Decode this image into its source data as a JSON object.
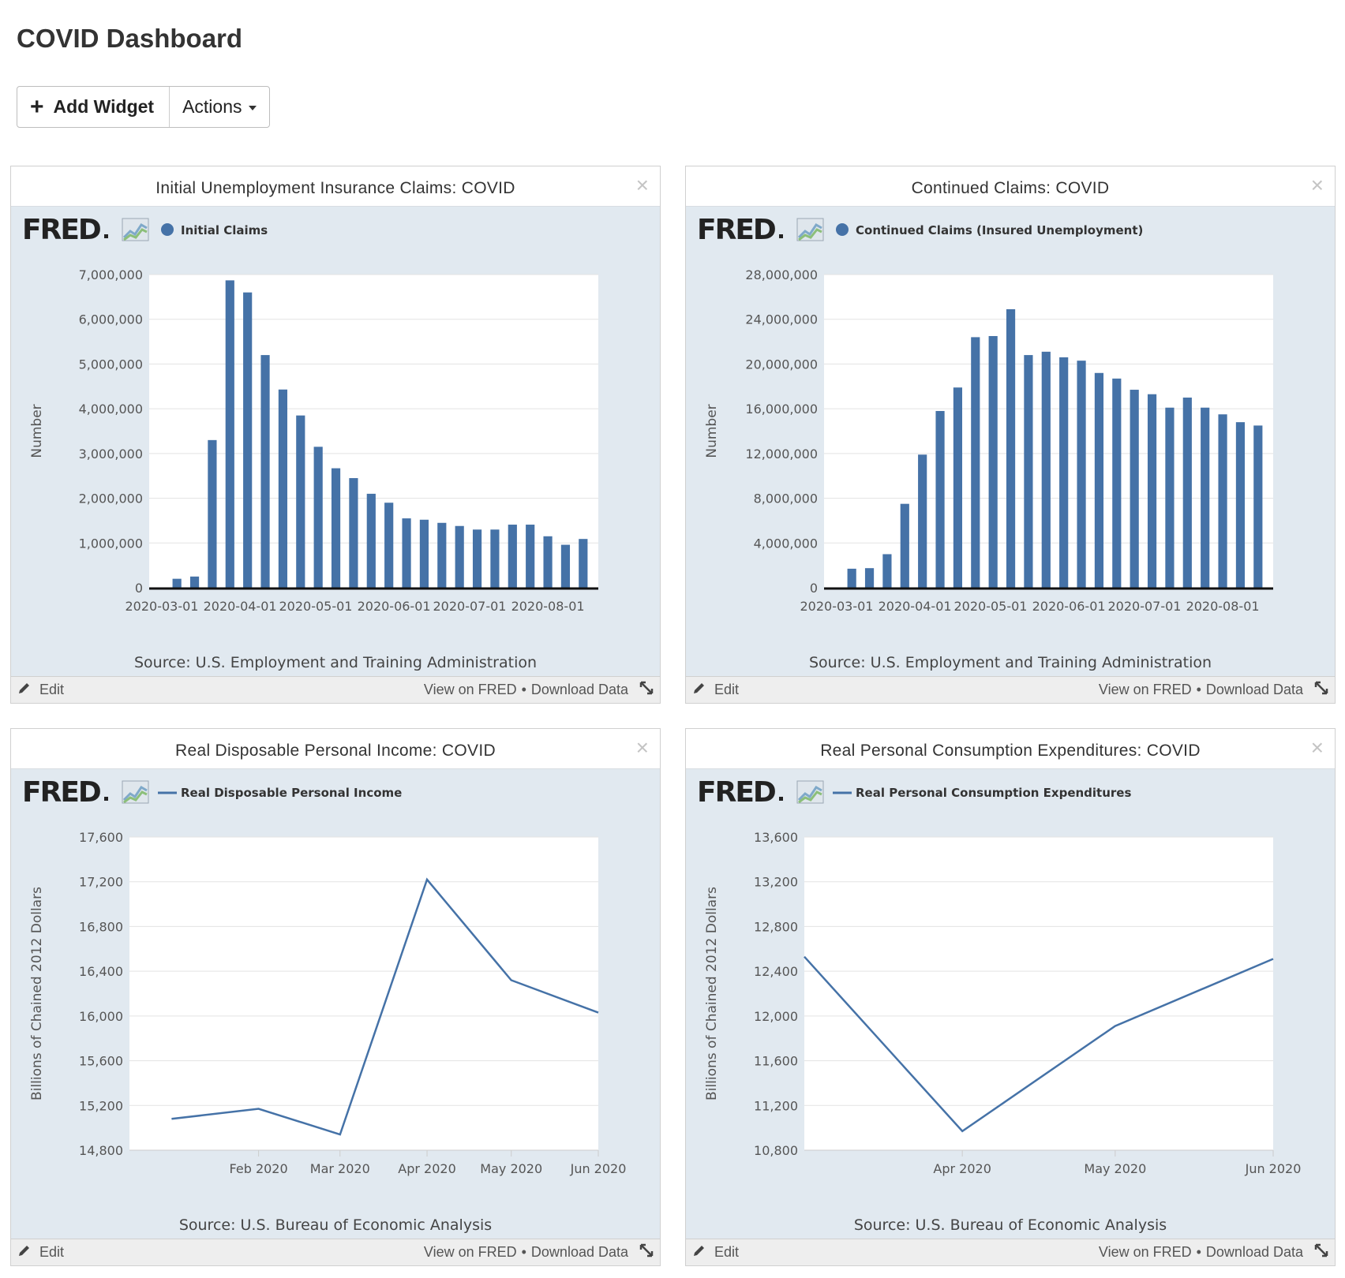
{
  "page": {
    "title": "COVID Dashboard"
  },
  "toolbar": {
    "add_widget_label": "Add Widget",
    "actions_label": "Actions"
  },
  "colors": {
    "series": "#4572a7",
    "plot_bg": "#ffffff",
    "panel_bg": "#e1e9f0"
  },
  "widgets": [
    {
      "title": "Initial Unemployment Insurance Claims: COVID",
      "legend": "Initial Claims",
      "legend_marker": "dot",
      "ylabel": "Number",
      "source": "Source: U.S. Employment and Training Administration",
      "edit_label": "Edit",
      "view_label": "View on FRED",
      "sep": "•",
      "download_label": "Download Data",
      "y_ticks": [
        "0",
        "1,000,000",
        "2,000,000",
        "3,000,000",
        "4,000,000",
        "5,000,000",
        "6,000,000",
        "7,000,000"
      ],
      "x_ticks": [
        "2020-03-01",
        "2020-04-01",
        "2020-05-01",
        "2020-06-01",
        "2020-07-01",
        "2020-08-01"
      ]
    },
    {
      "title": "Continued Claims: COVID",
      "legend": "Continued Claims (Insured Unemployment)",
      "legend_marker": "dot",
      "ylabel": "Number",
      "source": "Source: U.S. Employment and Training Administration",
      "edit_label": "Edit",
      "view_label": "View on FRED",
      "sep": "•",
      "download_label": "Download Data",
      "y_ticks": [
        "0",
        "4,000,000",
        "8,000,000",
        "12,000,000",
        "16,000,000",
        "20,000,000",
        "24,000,000",
        "28,000,000"
      ],
      "x_ticks": [
        "2020-03-01",
        "2020-04-01",
        "2020-05-01",
        "2020-06-01",
        "2020-07-01",
        "2020-08-01"
      ]
    },
    {
      "title": "Real Disposable Personal Income: COVID",
      "legend": "Real Disposable Personal Income",
      "legend_marker": "line",
      "ylabel": "Billions of Chained 2012 Dollars",
      "source": "Source: U.S. Bureau of Economic Analysis",
      "edit_label": "Edit",
      "view_label": "View on FRED",
      "sep": "•",
      "download_label": "Download Data",
      "y_ticks": [
        "14,800",
        "15,200",
        "15,600",
        "16,000",
        "16,400",
        "16,800",
        "17,200",
        "17,600"
      ],
      "x_ticks": [
        "Feb 2020",
        "Mar 2020",
        "Apr 2020",
        "May 2020",
        "Jun 2020"
      ]
    },
    {
      "title": "Real Personal Consumption Expenditures: COVID",
      "legend": "Real Personal Consumption Expenditures",
      "legend_marker": "line",
      "ylabel": "Billions of Chained 2012 Dollars",
      "source": "Source: U.S. Bureau of Economic Analysis",
      "edit_label": "Edit",
      "view_label": "View on FRED",
      "sep": "•",
      "download_label": "Download Data",
      "y_ticks": [
        "10,800",
        "11,200",
        "11,600",
        "12,000",
        "12,400",
        "12,800",
        "13,200",
        "13,600"
      ],
      "x_ticks": [
        "Apr 2020",
        "May 2020",
        "Jun 2020"
      ]
    }
  ],
  "chart_data": [
    {
      "type": "bar",
      "title": "Initial Unemployment Insurance Claims: COVID",
      "ylabel": "Number",
      "ylim": [
        0,
        7000000
      ],
      "series": [
        {
          "name": "Initial Claims",
          "x": [
            "2020-03-07",
            "2020-03-14",
            "2020-03-21",
            "2020-03-28",
            "2020-04-04",
            "2020-04-11",
            "2020-04-18",
            "2020-04-25",
            "2020-05-02",
            "2020-05-09",
            "2020-05-16",
            "2020-05-23",
            "2020-05-30",
            "2020-06-06",
            "2020-06-13",
            "2020-06-20",
            "2020-06-27",
            "2020-07-04",
            "2020-07-11",
            "2020-07-18",
            "2020-07-25",
            "2020-08-01",
            "2020-08-08",
            "2020-08-15"
          ],
          "values": [
            200000,
            250000,
            3300000,
            6870000,
            6600000,
            5200000,
            4430000,
            3850000,
            3150000,
            2670000,
            2450000,
            2100000,
            1900000,
            1550000,
            1520000,
            1450000,
            1380000,
            1300000,
            1300000,
            1410000,
            1410000,
            1150000,
            960000,
            1090000
          ]
        }
      ]
    },
    {
      "type": "bar",
      "title": "Continued Claims: COVID",
      "ylabel": "Number",
      "ylim": [
        0,
        28000000
      ],
      "series": [
        {
          "name": "Continued Claims (Insured Unemployment)",
          "x": [
            "2020-03-07",
            "2020-03-14",
            "2020-03-21",
            "2020-03-28",
            "2020-04-04",
            "2020-04-11",
            "2020-04-18",
            "2020-04-25",
            "2020-05-02",
            "2020-05-09",
            "2020-05-16",
            "2020-05-23",
            "2020-05-30",
            "2020-06-06",
            "2020-06-13",
            "2020-06-20",
            "2020-06-27",
            "2020-07-04",
            "2020-07-11",
            "2020-07-18",
            "2020-07-25",
            "2020-08-01",
            "2020-08-08",
            "2020-08-15"
          ],
          "values": [
            1700000,
            1750000,
            3000000,
            7500000,
            11900000,
            15800000,
            17900000,
            22400000,
            22500000,
            24900000,
            20800000,
            21100000,
            20600000,
            20300000,
            19200000,
            18700000,
            17700000,
            17300000,
            16100000,
            17000000,
            16100000,
            15500000,
            14800000,
            14500000
          ]
        }
      ]
    },
    {
      "type": "line",
      "title": "Real Disposable Personal Income: COVID",
      "ylabel": "Billions of Chained 2012 Dollars",
      "ylim": [
        14800,
        17600
      ],
      "series": [
        {
          "name": "Real Disposable Personal Income",
          "x": [
            "2020-01",
            "2020-02",
            "2020-03",
            "2020-04",
            "2020-05",
            "2020-06"
          ],
          "values": [
            15080,
            15170,
            14940,
            17220,
            16320,
            16030
          ]
        }
      ]
    },
    {
      "type": "line",
      "title": "Real Personal Consumption Expenditures: COVID",
      "ylabel": "Billions of Chained 2012 Dollars",
      "ylim": [
        10800,
        13600
      ],
      "series": [
        {
          "name": "Real Personal Consumption Expenditures",
          "x": [
            "2020-03",
            "2020-04",
            "2020-05",
            "2020-06"
          ],
          "values": [
            12530,
            10970,
            11910,
            12510
          ]
        }
      ]
    }
  ]
}
